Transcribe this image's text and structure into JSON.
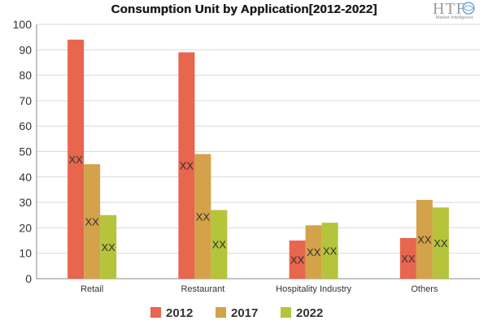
{
  "chart_data": {
    "type": "bar",
    "title": "Consumption Unit by  Application[2012-2022]",
    "categories": [
      "Retail",
      "Restaurant",
      "Hospitality Industry",
      "Others"
    ],
    "series": [
      {
        "name": "2012",
        "values": [
          94,
          89,
          15,
          16
        ],
        "color": "#e8654e"
      },
      {
        "name": "2017",
        "values": [
          45,
          49,
          21,
          31
        ],
        "color": "#d4a24a"
      },
      {
        "name": "2022",
        "values": [
          25,
          27,
          22,
          28
        ],
        "color": "#b5c43a"
      }
    ],
    "data_label": "XX",
    "ylim": [
      0,
      100
    ],
    "yticks": [
      0,
      10,
      20,
      30,
      40,
      50,
      60,
      70,
      80,
      90,
      100
    ],
    "xlabel": "",
    "ylabel": "",
    "grid": true,
    "legend_position": "bottom"
  },
  "logo": {
    "text": "HTF",
    "subtitle": "Market Intelligence"
  }
}
